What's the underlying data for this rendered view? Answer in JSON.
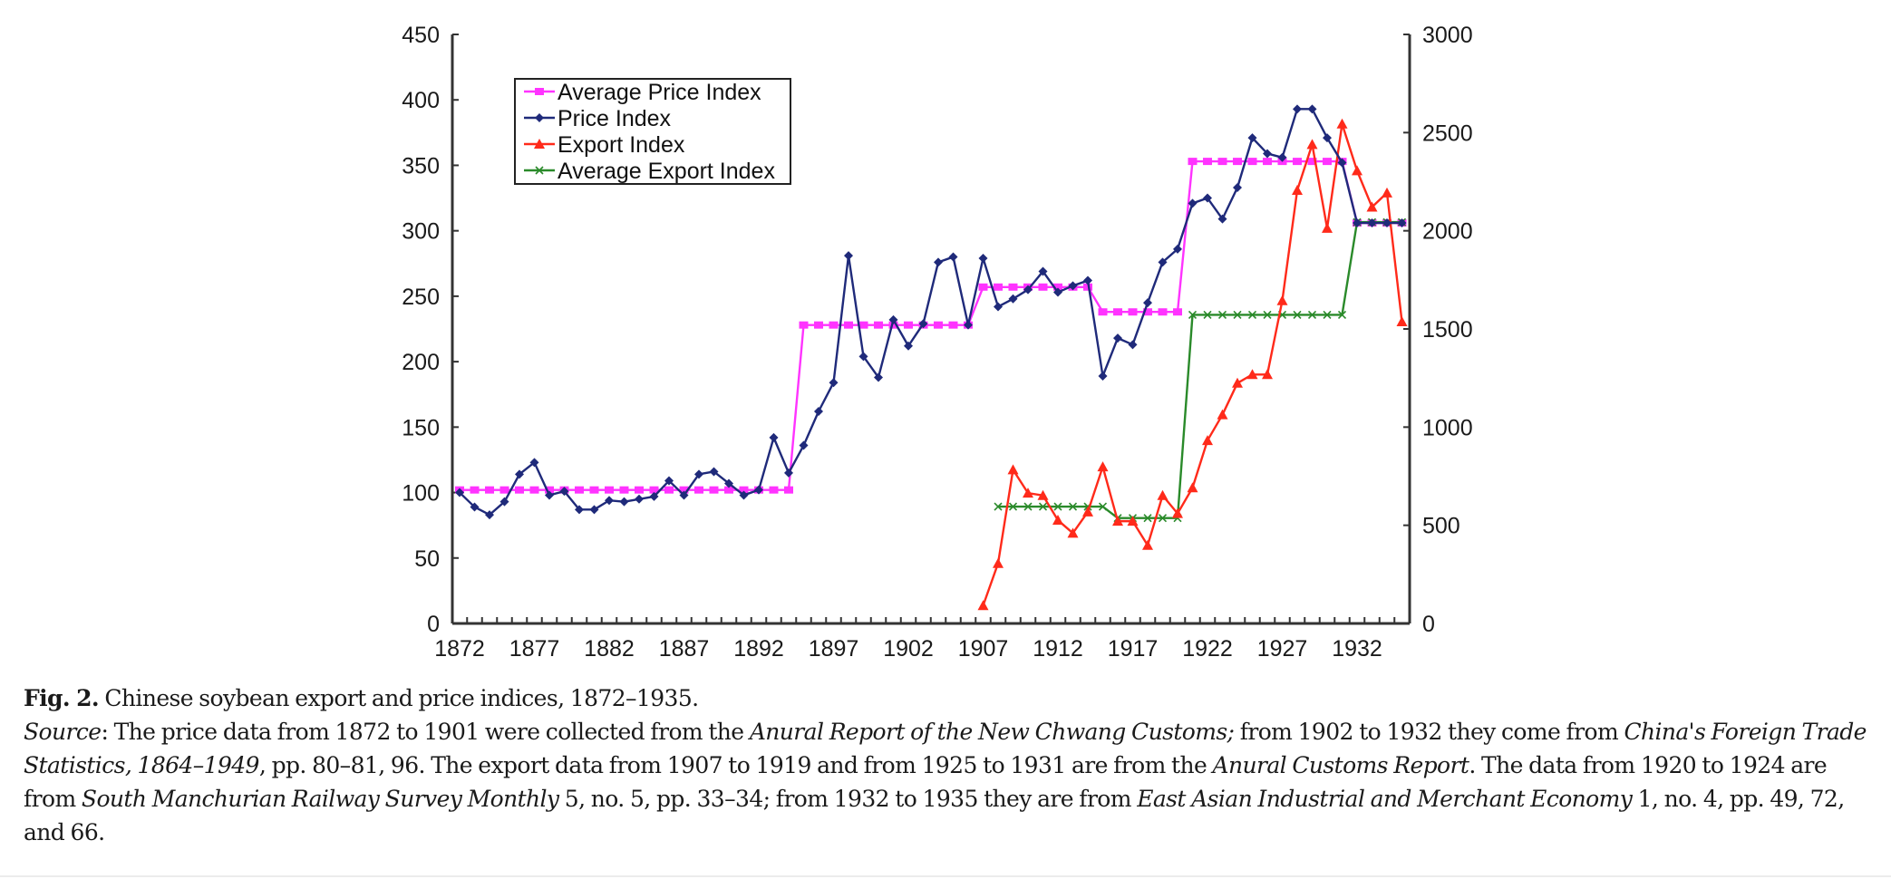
{
  "chart_data": {
    "type": "line",
    "title": "",
    "xlabel": "",
    "ylabel_left": "",
    "ylabel_right": "",
    "x_range": [
      1872,
      1935
    ],
    "x_tick_labels": [
      "1872",
      "1877",
      "1882",
      "1887",
      "1892",
      "1897",
      "1902",
      "1907",
      "1912",
      "1917",
      "1922",
      "1927",
      "1932"
    ],
    "left_axis": {
      "range": [
        0,
        450
      ],
      "ticks": [
        0,
        50,
        100,
        150,
        200,
        250,
        300,
        350,
        400,
        450
      ]
    },
    "right_axis": {
      "range": [
        0,
        3000
      ],
      "ticks": [
        0,
        500,
        1000,
        1500,
        2000,
        2500,
        3000
      ]
    },
    "grid": false,
    "legend_position": "top-left",
    "series": [
      {
        "name": "Average Price Index",
        "axis": "left",
        "color": "#ff33ff",
        "marker": "square",
        "x": [
          1872,
          1873,
          1874,
          1875,
          1876,
          1877,
          1878,
          1879,
          1880,
          1881,
          1882,
          1883,
          1884,
          1885,
          1886,
          1887,
          1888,
          1889,
          1890,
          1891,
          1892,
          1893,
          1894,
          1895,
          1896,
          1897,
          1898,
          1899,
          1900,
          1901,
          1902,
          1903,
          1904,
          1905,
          1906,
          1907,
          1908,
          1909,
          1910,
          1911,
          1912,
          1913,
          1914,
          1915,
          1916,
          1917,
          1918,
          1919,
          1920,
          1921,
          1922,
          1923,
          1924,
          1925,
          1926,
          1927,
          1928,
          1929,
          1930,
          1931,
          1932,
          1933,
          1934,
          1935
        ],
        "values": [
          102,
          102,
          102,
          102,
          102,
          102,
          102,
          102,
          102,
          102,
          102,
          102,
          102,
          102,
          102,
          102,
          102,
          102,
          102,
          102,
          102,
          102,
          102,
          228,
          228,
          228,
          228,
          228,
          228,
          228,
          228,
          228,
          228,
          228,
          228,
          257,
          257,
          257,
          257,
          257,
          257,
          257,
          257,
          238,
          238,
          238,
          238,
          238,
          238,
          353,
          353,
          353,
          353,
          353,
          353,
          353,
          353,
          353,
          353,
          353,
          306,
          306,
          306,
          306
        ]
      },
      {
        "name": "Price Index",
        "axis": "left",
        "color": "#1f2a7a",
        "marker": "diamond",
        "x": [
          1872,
          1873,
          1874,
          1875,
          1876,
          1877,
          1878,
          1879,
          1880,
          1881,
          1882,
          1883,
          1884,
          1885,
          1886,
          1887,
          1888,
          1889,
          1890,
          1891,
          1892,
          1893,
          1894,
          1895,
          1896,
          1897,
          1898,
          1899,
          1900,
          1901,
          1902,
          1903,
          1904,
          1905,
          1906,
          1907,
          1908,
          1909,
          1910,
          1911,
          1912,
          1913,
          1914,
          1915,
          1916,
          1917,
          1918,
          1919,
          1920,
          1921,
          1922,
          1923,
          1924,
          1925,
          1926,
          1927,
          1928,
          1929,
          1930,
          1931,
          1932,
          1933,
          1934,
          1935
        ],
        "values": [
          100,
          89,
          83,
          93,
          114,
          123,
          98,
          101,
          87,
          87,
          94,
          93,
          95,
          97,
          109,
          98,
          114,
          116,
          107,
          98,
          102,
          142,
          115,
          136,
          162,
          184,
          281,
          204,
          188,
          232,
          212,
          229,
          276,
          280,
          228,
          279,
          242,
          248,
          255,
          269,
          253,
          258,
          262,
          189,
          218,
          213,
          245,
          276,
          286,
          321,
          325,
          309,
          333,
          371,
          359,
          356,
          393,
          393,
          371,
          352,
          306,
          306,
          306,
          306
        ]
      },
      {
        "name": "Export Index",
        "axis": "right",
        "color": "#ff2a1a",
        "marker": "triangle",
        "x": [
          1907,
          1908,
          1909,
          1910,
          1911,
          1912,
          1913,
          1914,
          1915,
          1916,
          1917,
          1918,
          1919,
          1920,
          1921,
          1922,
          1923,
          1924,
          1925,
          1926,
          1927,
          1928,
          1929,
          1930,
          1931,
          1932,
          1933,
          1934,
          1935
        ],
        "values": [
          91,
          306,
          783,
          664,
          652,
          526,
          460,
          568,
          798,
          521,
          521,
          398,
          652,
          560,
          691,
          932,
          1063,
          1224,
          1268,
          1268,
          1644,
          2206,
          2440,
          2013,
          2544,
          2306,
          2121,
          2193,
          1537
        ]
      },
      {
        "name": "Average Export Index",
        "axis": "right",
        "color": "#2a8a2a",
        "marker": "x",
        "x": [
          1908,
          1909,
          1910,
          1911,
          1912,
          1913,
          1914,
          1915,
          1916,
          1917,
          1918,
          1919,
          1920,
          1921,
          1922,
          1923,
          1924,
          1925,
          1926,
          1927,
          1928,
          1929,
          1930,
          1931,
          1932,
          1933,
          1934,
          1935
        ],
        "values": [
          595,
          595,
          595,
          595,
          595,
          595,
          595,
          595,
          537,
          537,
          537,
          537,
          537,
          1572,
          1572,
          1572,
          1572,
          1572,
          1572,
          1572,
          1572,
          1572,
          1572,
          1572,
          2044,
          2044,
          2044,
          2044
        ]
      }
    ]
  },
  "caption": {
    "fig_label": "Fig. 2.",
    "title": " Chinese soybean export and price indices, 1872–1935.",
    "source_label": "Source",
    "parts": [
      {
        "t": ": The price data from 1872 to 1901 were collected from the ",
        "i": false
      },
      {
        "t": "Anural Report of the New Chwang Customs;",
        "i": true
      },
      {
        "t": " from 1902 to 1932 they come from ",
        "i": false
      },
      {
        "t": "China's Foreign Trade Statistics, 1864–1949",
        "i": true
      },
      {
        "t": ", pp. 80–81, 96. The export data from 1907 to 1919 and from 1925 to 1931 are from the ",
        "i": false
      },
      {
        "t": "Anural Customs Report",
        "i": true
      },
      {
        "t": ". The data from 1920 to 1924 are from ",
        "i": false
      },
      {
        "t": "South Manchurian Railway Survey Monthly",
        "i": true
      },
      {
        "t": " 5, no. 5, pp. 33–34; from 1932 to 1935 they are from ",
        "i": false
      },
      {
        "t": "East Asian Industrial and Merchant Economy",
        "i": true
      },
      {
        "t": " 1, no. 4, pp. 49, 72, and 66.",
        "i": false
      }
    ]
  }
}
